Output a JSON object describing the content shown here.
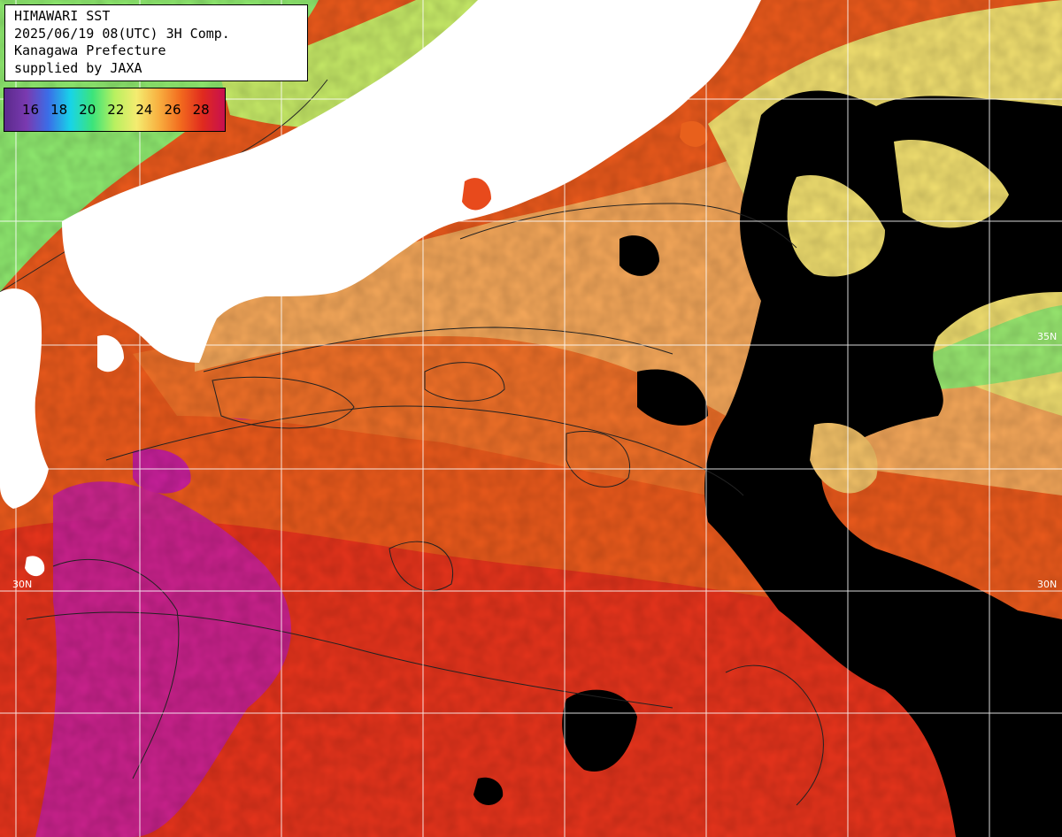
{
  "header": {
    "title": "HIMAWARI SST",
    "datetime": "2025/06/19 08(UTC) 3H Comp.",
    "region": "Kanagawa Prefecture",
    "credit": "supplied by JAXA"
  },
  "legend": {
    "unit_min": 16,
    "unit_max": 28,
    "labels": [
      "16",
      "18",
      "20",
      "22",
      "24",
      "26",
      "28"
    ],
    "gradient_colors": [
      "#5a2a8c",
      "#7a3ab0",
      "#3a6ee8",
      "#18d4e8",
      "#3ce47a",
      "#b8f060",
      "#f4ec70",
      "#f8b040",
      "#f26a1e",
      "#e02a1e",
      "#c81050"
    ]
  },
  "grid": {
    "lat_labels_left": [
      "30N"
    ],
    "lat_labels_right": [
      "35N",
      "30N"
    ]
  },
  "colors": {
    "land": "#ffffff",
    "cloud_no_data": "#000000",
    "grid": "#ffffff",
    "contour": "#222222",
    "sst_cold": "#7cf080",
    "sst_mid": "#f8c070",
    "sst_warm": "#f06420",
    "sst_hot": "#c8209a"
  }
}
